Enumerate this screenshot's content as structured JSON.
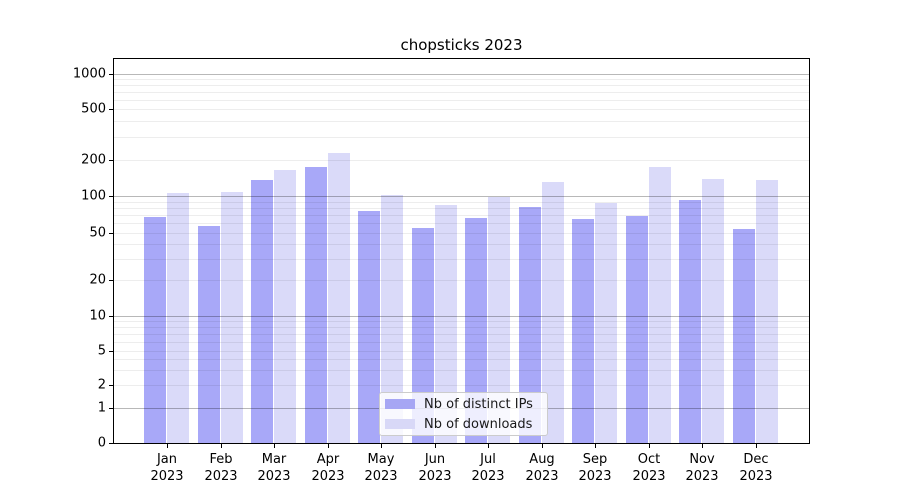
{
  "title": "chopsticks 2023",
  "colors": {
    "ips": "#a8a8f8",
    "downloads": "#dadaf9",
    "legend_ips": "#a6a6f4",
    "legend_downloads": "#d8d8f7",
    "grid_major": "rgba(0,0,0,0.28)",
    "grid_minor": "rgba(0,0,0,0.07)",
    "legend_border": "#cccccc"
  },
  "legend": {
    "items": [
      {
        "label": "Nb of distinct IPs"
      },
      {
        "label": "Nb of downloads"
      }
    ]
  },
  "y_axis": {
    "tick_labels": [
      "1000",
      "500",
      "200",
      "100",
      "50",
      "20",
      "10",
      "5",
      "2",
      "1",
      "0"
    ]
  },
  "x_axis": {
    "months": [
      "Jan",
      "Feb",
      "Mar",
      "Apr",
      "May",
      "Jun",
      "Jul",
      "Aug",
      "Sep",
      "Oct",
      "Nov",
      "Dec"
    ],
    "year": "2023"
  },
  "chart_data": {
    "type": "bar",
    "title": "chopsticks 2023",
    "categories": [
      "Jan 2023",
      "Feb 2023",
      "Mar 2023",
      "Apr 2023",
      "May 2023",
      "Jun 2023",
      "Jul 2023",
      "Aug 2023",
      "Sep 2023",
      "Oct 2023",
      "Nov 2023",
      "Dec 2023"
    ],
    "series": [
      {
        "name": "Nb of distinct IPs",
        "color": "#a8a8f8",
        "values": [
          67,
          57,
          136,
          175,
          76,
          55,
          66,
          81,
          65,
          69,
          93,
          54
        ]
      },
      {
        "name": "Nb of downloads",
        "color": "#dadaf9",
        "values": [
          106,
          109,
          164,
          228,
          102,
          85,
          99,
          132,
          88,
          174,
          138,
          136
        ]
      }
    ],
    "yscale": "symlog",
    "y_ticks": [
      0,
      1,
      2,
      5,
      10,
      20,
      50,
      100,
      200,
      500,
      1000
    ],
    "ylim": [
      0,
      1357
    ],
    "grid": "major+minor",
    "legend_position": "lower center"
  }
}
